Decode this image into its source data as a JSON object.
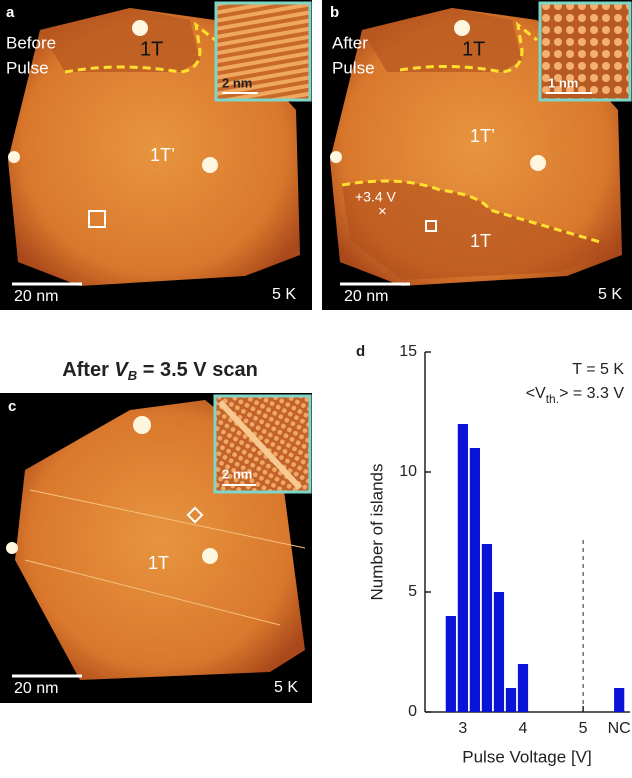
{
  "panels": {
    "a": {
      "label": "a",
      "caption": [
        "Before",
        "Pulse"
      ],
      "regions": [
        "1T",
        "1T’"
      ],
      "inset_scale": "2 nm",
      "scale": "20 nm",
      "temperature": "5 K"
    },
    "b": {
      "label": "b",
      "caption": [
        "After",
        "Pulse"
      ],
      "regions": [
        "1T",
        "1T’",
        "1T"
      ],
      "pulse": "+3.4 V",
      "pulse_mark": "×",
      "inset_scale": "1 nm",
      "scale": "20 nm",
      "temperature": "5 K"
    },
    "c": {
      "title": [
        "After ",
        "V",
        "B",
        " = 3.5 V scan"
      ],
      "label": "c",
      "regions": [
        "1T"
      ],
      "inset_scale": "2 nm",
      "scale": "20 nm",
      "temperature": "5 K"
    }
  },
  "chart_data": {
    "type": "bar",
    "panel_label": "d",
    "x": [
      2.8,
      3.0,
      3.2,
      3.4,
      3.6,
      3.8,
      4.0,
      5.6
    ],
    "values": [
      4,
      12,
      11,
      7,
      5,
      1,
      2,
      1
    ],
    "color": "#0a14d8",
    "xlim": [
      2.37,
      5.78
    ],
    "xticks": [
      3,
      4,
      5,
      {
        "value": 5.6,
        "label": "NC"
      }
    ],
    "ylim": [
      0,
      15
    ],
    "yticks": [
      0,
      5,
      10,
      15
    ],
    "vline": 5,
    "xlabel": "Pulse Voltage [V]",
    "ylabel": "Number of islands",
    "annotations": [
      "T = 5 K",
      "<V",
      "th.",
      "> = 3.3 V"
    ]
  }
}
